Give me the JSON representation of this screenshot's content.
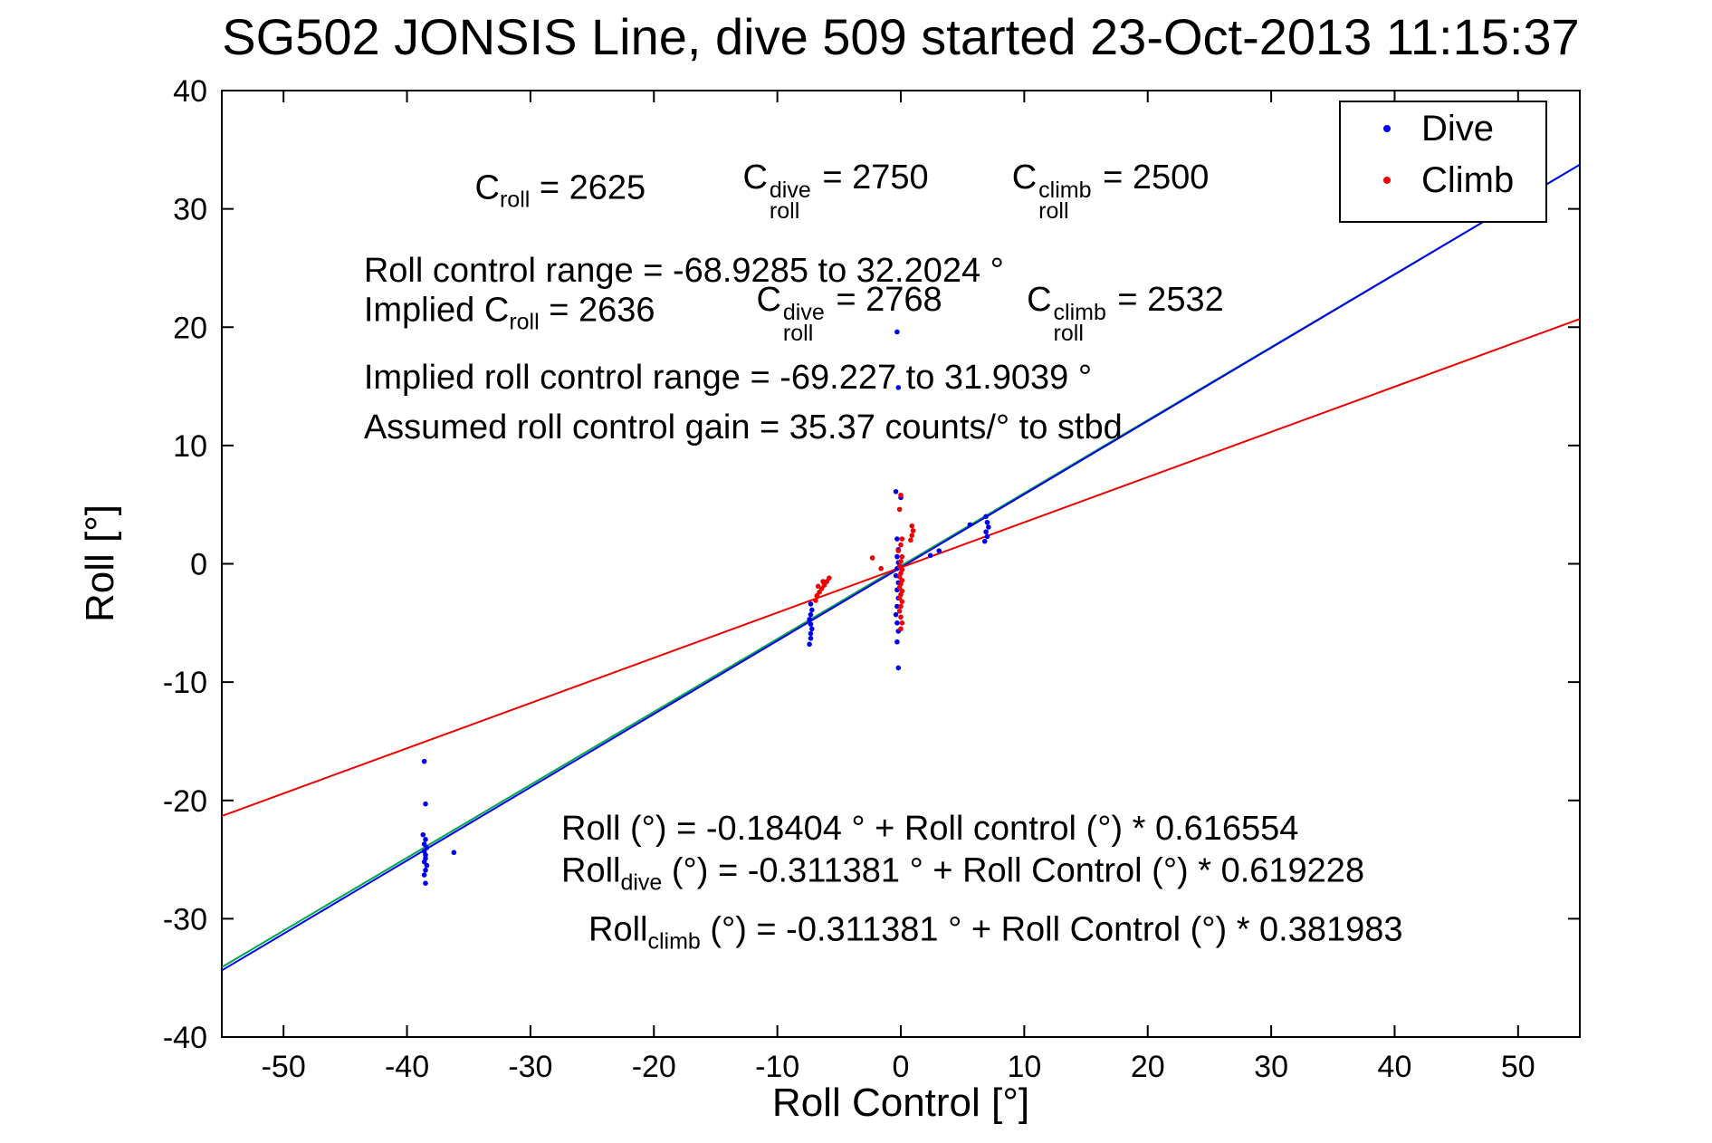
{
  "chart_data": {
    "type": "scatter",
    "title": "SG502 JONSIS Line, dive 509 started 23-Oct-2013 11:15:37",
    "xlabel": "Roll Control [°]",
    "ylabel": "Roll [°]",
    "xlim": [
      -55,
      55
    ],
    "ylim": [
      -40,
      40
    ],
    "xticks": [
      -50,
      -40,
      -30,
      -20,
      -10,
      0,
      10,
      20,
      30,
      40,
      50
    ],
    "yticks": [
      -40,
      -30,
      -20,
      -10,
      0,
      10,
      20,
      30,
      40
    ],
    "grid": false,
    "legend": {
      "position": "top-right",
      "items": [
        {
          "label": "Dive",
          "color": "#0000ee"
        },
        {
          "label": "Climb",
          "color": "#ee0000"
        }
      ]
    },
    "series": [
      {
        "name": "Dive",
        "color": "#0000ee",
        "marker": "dot",
        "points": [
          [
            -38.6,
            -16.7
          ],
          [
            -38.5,
            -20.3
          ],
          [
            -38.7,
            -22.9
          ],
          [
            -38.5,
            -23.3
          ],
          [
            -38.6,
            -23.7
          ],
          [
            -38.4,
            -24.0
          ],
          [
            -38.6,
            -24.3
          ],
          [
            -38.5,
            -24.6
          ],
          [
            -38.5,
            -24.9
          ],
          [
            -38.6,
            -25.2
          ],
          [
            -38.4,
            -25.5
          ],
          [
            -38.5,
            -25.9
          ],
          [
            -38.6,
            -26.3
          ],
          [
            -38.5,
            -27.0
          ],
          [
            -36.2,
            -24.4
          ],
          [
            -7.4,
            -6.8
          ],
          [
            -7.3,
            -6.3
          ],
          [
            -7.3,
            -5.9
          ],
          [
            -7.2,
            -5.5
          ],
          [
            -7.3,
            -5.1
          ],
          [
            -7.4,
            -4.7
          ],
          [
            -7.3,
            -4.3
          ],
          [
            -7.2,
            -3.9
          ],
          [
            -7.3,
            -3.4
          ],
          [
            -0.3,
            19.6
          ],
          [
            -0.2,
            14.9
          ],
          [
            -0.4,
            6.1
          ],
          [
            0.0,
            5.6
          ],
          [
            -0.3,
            2.1
          ],
          [
            -0.2,
            1.2
          ],
          [
            -0.3,
            0.6
          ],
          [
            -0.2,
            0.1
          ],
          [
            -0.3,
            -0.4
          ],
          [
            -0.4,
            -1.0
          ],
          [
            -0.2,
            -1.6
          ],
          [
            -0.3,
            -2.2
          ],
          [
            -0.2,
            -2.9
          ],
          [
            -0.3,
            -3.6
          ],
          [
            -0.4,
            -4.3
          ],
          [
            -0.3,
            -5.0
          ],
          [
            -0.2,
            -5.7
          ],
          [
            -0.3,
            -6.6
          ],
          [
            -0.2,
            -8.8
          ],
          [
            2.4,
            0.7
          ],
          [
            3.1,
            1.1
          ],
          [
            5.6,
            3.3
          ],
          [
            6.8,
            1.9
          ],
          [
            7.0,
            2.3
          ],
          [
            6.9,
            2.7
          ],
          [
            7.1,
            3.1
          ],
          [
            7.0,
            3.5
          ],
          [
            6.9,
            4.0
          ]
        ]
      },
      {
        "name": "Climb",
        "color": "#ee0000",
        "marker": "dot",
        "points": [
          [
            -6.9,
            -3.1
          ],
          [
            -6.8,
            -2.7
          ],
          [
            -6.6,
            -2.4
          ],
          [
            -6.4,
            -2.1
          ],
          [
            -6.2,
            -1.8
          ],
          [
            -6.0,
            -1.5
          ],
          [
            -5.8,
            -1.2
          ],
          [
            -6.7,
            -1.9
          ],
          [
            -6.3,
            -1.5
          ],
          [
            -2.3,
            0.5
          ],
          [
            -1.6,
            -0.4
          ],
          [
            0.0,
            5.8
          ],
          [
            -0.1,
            4.6
          ],
          [
            0.1,
            2.1
          ],
          [
            0.0,
            1.6
          ],
          [
            -0.2,
            1.1
          ],
          [
            0.1,
            0.6
          ],
          [
            0.0,
            0.2
          ],
          [
            -0.1,
            -0.2
          ],
          [
            0.1,
            -0.5
          ],
          [
            0.0,
            -0.8
          ],
          [
            -0.1,
            -1.1
          ],
          [
            0.1,
            -1.4
          ],
          [
            0.0,
            -1.7
          ],
          [
            -0.1,
            -2.0
          ],
          [
            0.1,
            -2.3
          ],
          [
            0.0,
            -2.6
          ],
          [
            -0.1,
            -2.9
          ],
          [
            0.1,
            -3.2
          ],
          [
            0.0,
            -3.6
          ],
          [
            -0.1,
            -4.0
          ],
          [
            0.0,
            -4.5
          ],
          [
            0.1,
            -5.0
          ],
          [
            0.0,
            -5.5
          ],
          [
            0.8,
            2.0
          ],
          [
            0.9,
            2.4
          ],
          [
            1.0,
            2.8
          ],
          [
            0.9,
            3.2
          ]
        ]
      }
    ],
    "fit_lines": [
      {
        "name": "all-fit-line",
        "color": "#00a850",
        "intercept": -0.18404,
        "slope": 0.616554
      },
      {
        "name": "dive-fit-line",
        "color": "#0000ee",
        "intercept": -0.311381,
        "slope": 0.619228
      },
      {
        "name": "climb-fit-line",
        "color": "#ee0000",
        "intercept": -0.311381,
        "slope": 0.381983
      }
    ],
    "annotations": [
      {
        "x": -34.5,
        "y": 31.5,
        "parts": [
          {
            "t": "C"
          },
          {
            "sub": "roll"
          },
          {
            "t": " = 2625"
          }
        ]
      },
      {
        "x": -12.8,
        "y": 31.5,
        "parts": [
          {
            "t": "C"
          },
          {
            "stack": {
              "sup": "dive",
              "sub": "roll"
            }
          },
          {
            "t": " = 2750"
          }
        ]
      },
      {
        "x": 9.0,
        "y": 31.5,
        "parts": [
          {
            "t": "C"
          },
          {
            "stack": {
              "sup": "climb",
              "sub": "roll"
            }
          },
          {
            "t": " = 2500"
          }
        ]
      },
      {
        "x": -43.5,
        "y": 24.8,
        "parts": [
          {
            "t": "Roll control range = -68.9285 to 32.2024 °"
          }
        ]
      },
      {
        "x": -43.5,
        "y": 21.2,
        "parts": [
          {
            "t": "Implied C"
          },
          {
            "sub": "roll"
          },
          {
            "t": " = 2636"
          }
        ]
      },
      {
        "x": -11.7,
        "y": 21.2,
        "parts": [
          {
            "t": "C"
          },
          {
            "stack": {
              "sup": "dive",
              "sub": "roll"
            }
          },
          {
            "t": " = 2768"
          }
        ]
      },
      {
        "x": 10.2,
        "y": 21.2,
        "parts": [
          {
            "t": "C"
          },
          {
            "stack": {
              "sup": "climb",
              "sub": "roll"
            }
          },
          {
            "t": " = 2532"
          }
        ]
      },
      {
        "x": -43.5,
        "y": 15.7,
        "parts": [
          {
            "t": "Implied roll control range = -69.227 to 31.9039 °"
          }
        ]
      },
      {
        "x": -43.5,
        "y": 11.5,
        "parts": [
          {
            "t": "Assumed roll control gain = 35.37 counts/° to stbd"
          }
        ]
      },
      {
        "x": -27.5,
        "y": -22.4,
        "parts": [
          {
            "t": "Roll (°) = -0.18404 ° + Roll control (°) * 0.616554"
          }
        ]
      },
      {
        "x": -27.5,
        "y": -26.2,
        "parts": [
          {
            "t": "Roll"
          },
          {
            "sub": "dive"
          },
          {
            "t": " (°) = -0.311381 ° + Roll Control (°) * 0.619228"
          }
        ]
      },
      {
        "x": -25.3,
        "y": -31.2,
        "parts": [
          {
            "t": "Roll"
          },
          {
            "sub": "climb"
          },
          {
            "t": " (°) = -0.311381 ° + Roll Control (°) * 0.381983"
          }
        ]
      }
    ]
  }
}
